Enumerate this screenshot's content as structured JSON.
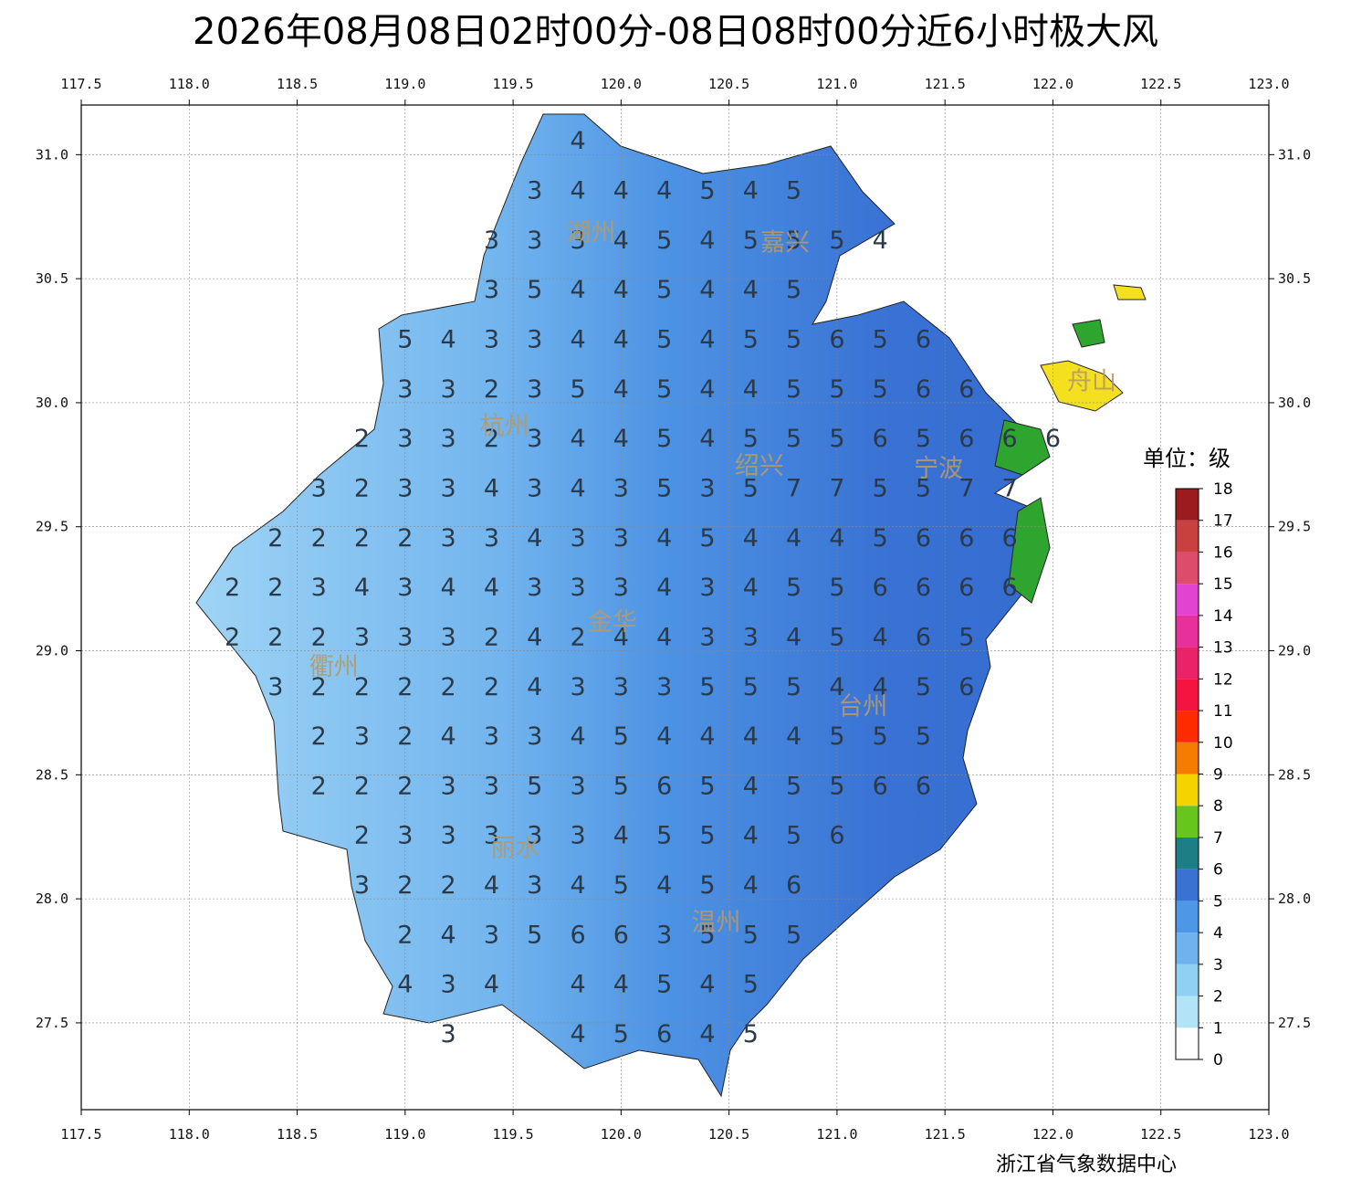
{
  "title": "2026年08月08日02时00分-08日08时00分近6小时极大风",
  "footer": "浙江省气象数据中心",
  "xlim": [
    117.5,
    123.0
  ],
  "ylim": [
    27.15,
    31.2
  ],
  "xticks": [
    117.5,
    {
      "value": 118.0,
      "label": "118.0"
    },
    118.5,
    {
      "value": 119.0,
      "label": "119.0"
    },
    119.5,
    {
      "value": 120.0,
      "label": "120.0"
    },
    120.5,
    {
      "value": 121.0,
      "label": "121.0"
    },
    121.5,
    {
      "value": 122.0,
      "label": "122.0"
    },
    122.5,
    {
      "value": 123.0,
      "label": "123.0"
    }
  ],
  "yticks": [
    27.5,
    {
      "value": 28.0,
      "label": "28.0"
    },
    28.5,
    {
      "value": 29.0,
      "label": "29.0"
    },
    29.5,
    {
      "value": 30.0,
      "label": "30.0"
    },
    30.5,
    {
      "value": 31.0,
      "label": "31.0"
    }
  ],
  "grid": true,
  "cities": [
    {
      "name": "湖州",
      "lon": 119.86,
      "lat": 30.68
    },
    {
      "name": "嘉兴",
      "lon": 120.76,
      "lat": 30.64
    },
    {
      "name": "杭州",
      "lon": 119.46,
      "lat": 29.9
    },
    {
      "name": "绍兴",
      "lon": 120.64,
      "lat": 29.74
    },
    {
      "name": "宁波",
      "lon": 121.47,
      "lat": 29.73
    },
    {
      "name": "舟山",
      "lon": 122.18,
      "lat": 30.08
    },
    {
      "name": "金华",
      "lon": 119.96,
      "lat": 29.11
    },
    {
      "name": "衢州",
      "lon": 118.67,
      "lat": 28.93
    },
    {
      "name": "台州",
      "lon": 121.12,
      "lat": 28.77
    },
    {
      "name": "丽水",
      "lon": 119.51,
      "lat": 28.2
    },
    {
      "name": "温州",
      "lon": 120.44,
      "lat": 27.9
    }
  ],
  "wind_grid": [
    {
      "lat": 31.05,
      "lon_start": 119.8,
      "values": [
        4
      ]
    },
    {
      "lat": 30.85,
      "lon_start": 119.6,
      "values": [
        3,
        4,
        4,
        4,
        5,
        4,
        5
      ]
    },
    {
      "lat": 30.65,
      "lon_start": 119.4,
      "values": [
        3,
        3,
        3,
        4,
        5,
        4,
        5,
        5,
        5,
        4
      ]
    },
    {
      "lat": 30.45,
      "lon_start": 119.4,
      "values": [
        3,
        5,
        4,
        4,
        5,
        4,
        4,
        5
      ]
    },
    {
      "lat": 30.25,
      "lon_start": 119.0,
      "values": [
        5,
        4,
        3,
        3,
        4,
        4,
        5,
        4,
        5,
        5,
        6,
        5,
        6
      ]
    },
    {
      "lat": 30.05,
      "lon_start": 119.0,
      "values": [
        3,
        3,
        2,
        3,
        5,
        4,
        5,
        4,
        4,
        5,
        5,
        5,
        6,
        6
      ]
    },
    {
      "lat": 29.85,
      "lon_start": 118.8,
      "values": [
        2,
        3,
        3,
        2,
        3,
        4,
        4,
        5,
        4,
        5,
        5,
        5,
        6,
        5,
        6,
        6,
        6
      ]
    },
    {
      "lat": 29.65,
      "lon_start": 118.6,
      "values": [
        3,
        2,
        3,
        3,
        4,
        3,
        4,
        3,
        5,
        3,
        5,
        7,
        7,
        5,
        5,
        7,
        7
      ]
    },
    {
      "lat": 29.45,
      "lon_start": 118.4,
      "values": [
        2,
        2,
        2,
        2,
        3,
        3,
        4,
        3,
        3,
        4,
        5,
        4,
        4,
        4,
        5,
        6,
        6,
        6
      ]
    },
    {
      "lat": 29.25,
      "lon_start": 118.2,
      "values": [
        2,
        2,
        3,
        4,
        3,
        4,
        4,
        3,
        3,
        3,
        4,
        3,
        4,
        5,
        5,
        6,
        6,
        6,
        6
      ]
    },
    {
      "lat": 29.05,
      "lon_start": 118.2,
      "values": [
        2,
        2,
        2,
        3,
        3,
        3,
        2,
        4,
        2,
        4,
        4,
        3,
        3,
        4,
        5,
        4,
        6,
        5
      ]
    },
    {
      "lat": 28.85,
      "lon_start": 118.4,
      "values": [
        3,
        2,
        2,
        2,
        2,
        2,
        4,
        3,
        3,
        3,
        5,
        5,
        5,
        4,
        4,
        5,
        6
      ]
    },
    {
      "lat": 28.65,
      "lon_start": 118.6,
      "values": [
        2,
        3,
        2,
        4,
        3,
        3,
        4,
        5,
        4,
        4,
        4,
        4,
        5,
        5,
        5
      ]
    },
    {
      "lat": 28.45,
      "lon_start": 118.6,
      "values": [
        2,
        2,
        2,
        3,
        3,
        5,
        3,
        5,
        6,
        5,
        4,
        5,
        5,
        6,
        6
      ]
    },
    {
      "lat": 28.25,
      "lon_start": 118.8,
      "values": [
        2,
        3,
        3,
        3,
        3,
        3,
        4,
        5,
        5,
        4,
        5,
        6
      ]
    },
    {
      "lat": 28.05,
      "lon_start": 118.8,
      "values": [
        3,
        2,
        2,
        4,
        3,
        4,
        5,
        4,
        5,
        4,
        6
      ]
    },
    {
      "lat": 27.85,
      "lon_start": 119.0,
      "values": [
        2,
        4,
        3,
        5,
        6,
        6,
        3,
        5,
        5,
        5
      ]
    },
    {
      "lat": 27.65,
      "lon_start": 119.0,
      "values": [
        4,
        3,
        4,
        null,
        4,
        4,
        5,
        4,
        5
      ]
    },
    {
      "lat": 27.45,
      "lon_start": 119.2,
      "values": [
        3,
        null,
        null,
        4,
        5,
        6,
        4,
        5
      ]
    }
  ],
  "colorbar": {
    "title": "单位：级",
    "levels": [
      0,
      1,
      2,
      3,
      4,
      5,
      6,
      7,
      8,
      9,
      10,
      11,
      12,
      13,
      14,
      15,
      16,
      17,
      18
    ],
    "colors": [
      "#ffffff",
      "#b3e3f6",
      "#90d0f3",
      "#6fb3ee",
      "#4d97e6",
      "#3a72d3",
      "#1c7f86",
      "#66c61c",
      "#f5d300",
      "#f57c00",
      "#ff2b00",
      "#f51440",
      "#ea2268",
      "#e8309a",
      "#e044d0",
      "#dd4d6b",
      "#c94040",
      "#9b1b1f",
      "#ffccff"
    ]
  }
}
